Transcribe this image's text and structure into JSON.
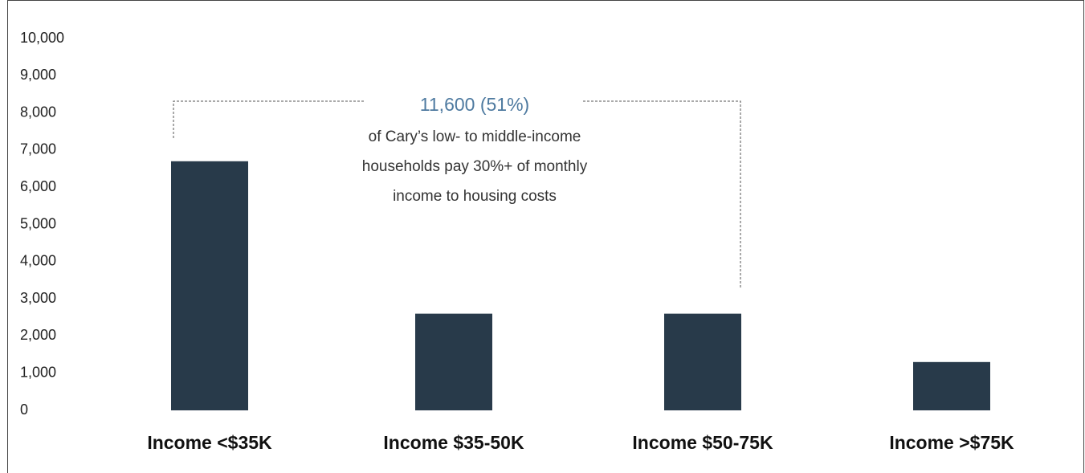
{
  "chart_data": {
    "type": "bar",
    "categories": [
      "Income <$35K",
      "Income $35-50K",
      "Income $50-75K",
      "Income >$75K"
    ],
    "values": [
      6700,
      2600,
      2600,
      1300
    ],
    "color": "#283a4a",
    "ylim": [
      0,
      10000
    ],
    "yticks": [
      0,
      {
        "value": 1000,
        "label": "1,000"
      },
      {
        "value": 2000,
        "label": "2,000"
      },
      {
        "value": 3000,
        "label": "3,000"
      },
      {
        "value": 4000,
        "label": "4,000"
      },
      {
        "value": 5000,
        "label": "5,000"
      },
      {
        "value": 6000,
        "label": "6,000"
      },
      {
        "value": 7000,
        "label": "7,000"
      },
      {
        "value": 8000,
        "label": "8,000"
      },
      {
        "value": 9000,
        "label": "9,000"
      },
      {
        "value": 10000,
        "label": "10,000"
      }
    ],
    "annotation": {
      "headline": "11,600 (51%)",
      "lines": [
        "of Cary’s low- to middle-income",
        "households pay 30%+ of monthly",
        "income to housing costs"
      ]
    }
  }
}
